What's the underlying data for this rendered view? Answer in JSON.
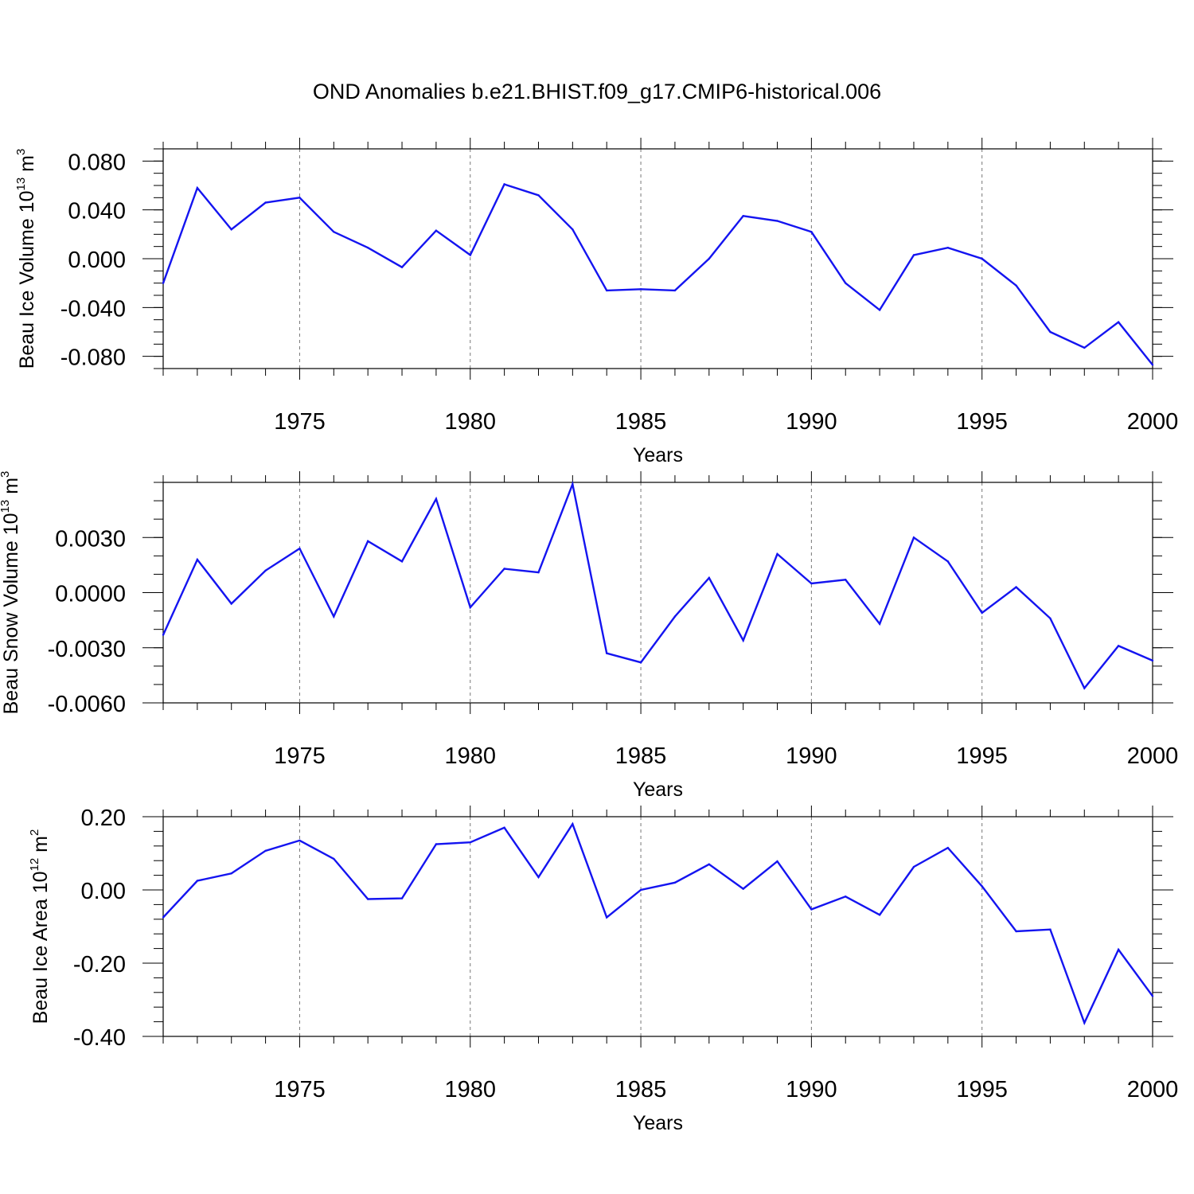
{
  "title": "OND Anomalies b.e21.BHIST.f09_g17.CMIP6-historical.006",
  "colors": {
    "series": "#1414f0",
    "grid": "#777777"
  },
  "chart_data": [
    {
      "type": "line",
      "title": "",
      "xlabel": "Years",
      "ylabel": {
        "base": "Beau Ice Volume 10",
        "sup1": "13",
        "mid": " m",
        "sup2": "3"
      },
      "xlim": [
        1971,
        2000
      ],
      "ylim": [
        -0.09,
        0.09
      ],
      "xticks": [
        1975,
        1980,
        1985,
        1990,
        1995,
        2000
      ],
      "yticks": [
        -0.08,
        -0.04,
        0.0,
        0.04,
        0.08
      ],
      "ytick_labels": [
        "-0.080",
        "-0.040",
        "0.000",
        "0.040",
        "0.080"
      ],
      "ytick_minor": 0.01,
      "grid": "x dashed at major ticks",
      "x": [
        1971,
        1972,
        1973,
        1974,
        1975,
        1976,
        1977,
        1978,
        1979,
        1980,
        1981,
        1982,
        1983,
        1984,
        1985,
        1986,
        1987,
        1988,
        1989,
        1990,
        1991,
        1992,
        1993,
        1994,
        1995,
        1996,
        1997,
        1998,
        1999,
        2000
      ],
      "values": [
        -0.02,
        0.058,
        0.024,
        0.046,
        0.05,
        0.022,
        0.009,
        -0.007,
        0.023,
        0.003,
        0.061,
        0.052,
        0.024,
        -0.026,
        -0.025,
        -0.026,
        0.0,
        0.035,
        0.031,
        0.022,
        -0.02,
        -0.042,
        0.003,
        0.009,
        0.0,
        -0.022,
        -0.06,
        -0.073,
        -0.052,
        -0.087
      ]
    },
    {
      "type": "line",
      "title": "",
      "xlabel": "Years",
      "ylabel": {
        "base": "Beau Snow Volume 10",
        "sup1": "13",
        "mid": " m",
        "sup2": "3"
      },
      "xlim": [
        1971,
        2000
      ],
      "ylim": [
        -0.006,
        0.006
      ],
      "xticks": [
        1975,
        1980,
        1985,
        1990,
        1995,
        2000
      ],
      "yticks": [
        -0.006,
        -0.003,
        0.0,
        0.003
      ],
      "ytick_labels": [
        "-0.0060",
        "-0.0030",
        "0.0000",
        "0.0030"
      ],
      "ytick_minor": 0.001,
      "grid": "x dashed at major ticks",
      "x": [
        1971,
        1972,
        1973,
        1974,
        1975,
        1976,
        1977,
        1978,
        1979,
        1980,
        1981,
        1982,
        1983,
        1984,
        1985,
        1986,
        1987,
        1988,
        1989,
        1990,
        1991,
        1992,
        1993,
        1994,
        1995,
        1996,
        1997,
        1998,
        1999,
        2000
      ],
      "values": [
        -0.0023,
        0.0018,
        -0.0006,
        0.0012,
        0.0024,
        -0.0013,
        0.0028,
        0.0017,
        0.0051,
        -0.0008,
        0.0013,
        0.0011,
        0.0059,
        -0.0033,
        -0.0038,
        -0.0013,
        0.0008,
        -0.0026,
        0.0021,
        0.0005,
        0.0007,
        -0.0017,
        0.003,
        0.0017,
        -0.0011,
        0.0003,
        -0.0014,
        -0.0052,
        -0.0029,
        -0.0037
      ]
    },
    {
      "type": "line",
      "title": "",
      "xlabel": "Years",
      "ylabel": {
        "base": "Beau Ice Area 10",
        "sup1": "12",
        "mid": " m",
        "sup2": "2"
      },
      "xlim": [
        1971,
        2000
      ],
      "ylim": [
        -0.4,
        0.2
      ],
      "xticks": [
        1975,
        1980,
        1985,
        1990,
        1995,
        2000
      ],
      "yticks": [
        -0.4,
        -0.2,
        0.0,
        0.2
      ],
      "ytick_labels": [
        "-0.40",
        "-0.20",
        "0.00",
        "0.20"
      ],
      "ytick_minor": 0.04,
      "grid": "x dashed at major ticks",
      "x": [
        1971,
        1972,
        1973,
        1974,
        1975,
        1976,
        1977,
        1978,
        1979,
        1980,
        1981,
        1982,
        1983,
        1984,
        1985,
        1986,
        1987,
        1988,
        1989,
        1990,
        1991,
        1992,
        1993,
        1994,
        1995,
        1996,
        1997,
        1998,
        1999,
        2000
      ],
      "values": [
        -0.075,
        0.025,
        0.045,
        0.107,
        0.135,
        0.085,
        -0.025,
        -0.023,
        0.125,
        0.13,
        0.17,
        0.035,
        0.18,
        -0.075,
        0.0,
        0.02,
        0.07,
        0.003,
        0.078,
        -0.053,
        -0.018,
        -0.068,
        0.063,
        0.115,
        0.01,
        -0.113,
        -0.108,
        -0.363,
        -0.163,
        -0.29
      ]
    }
  ]
}
